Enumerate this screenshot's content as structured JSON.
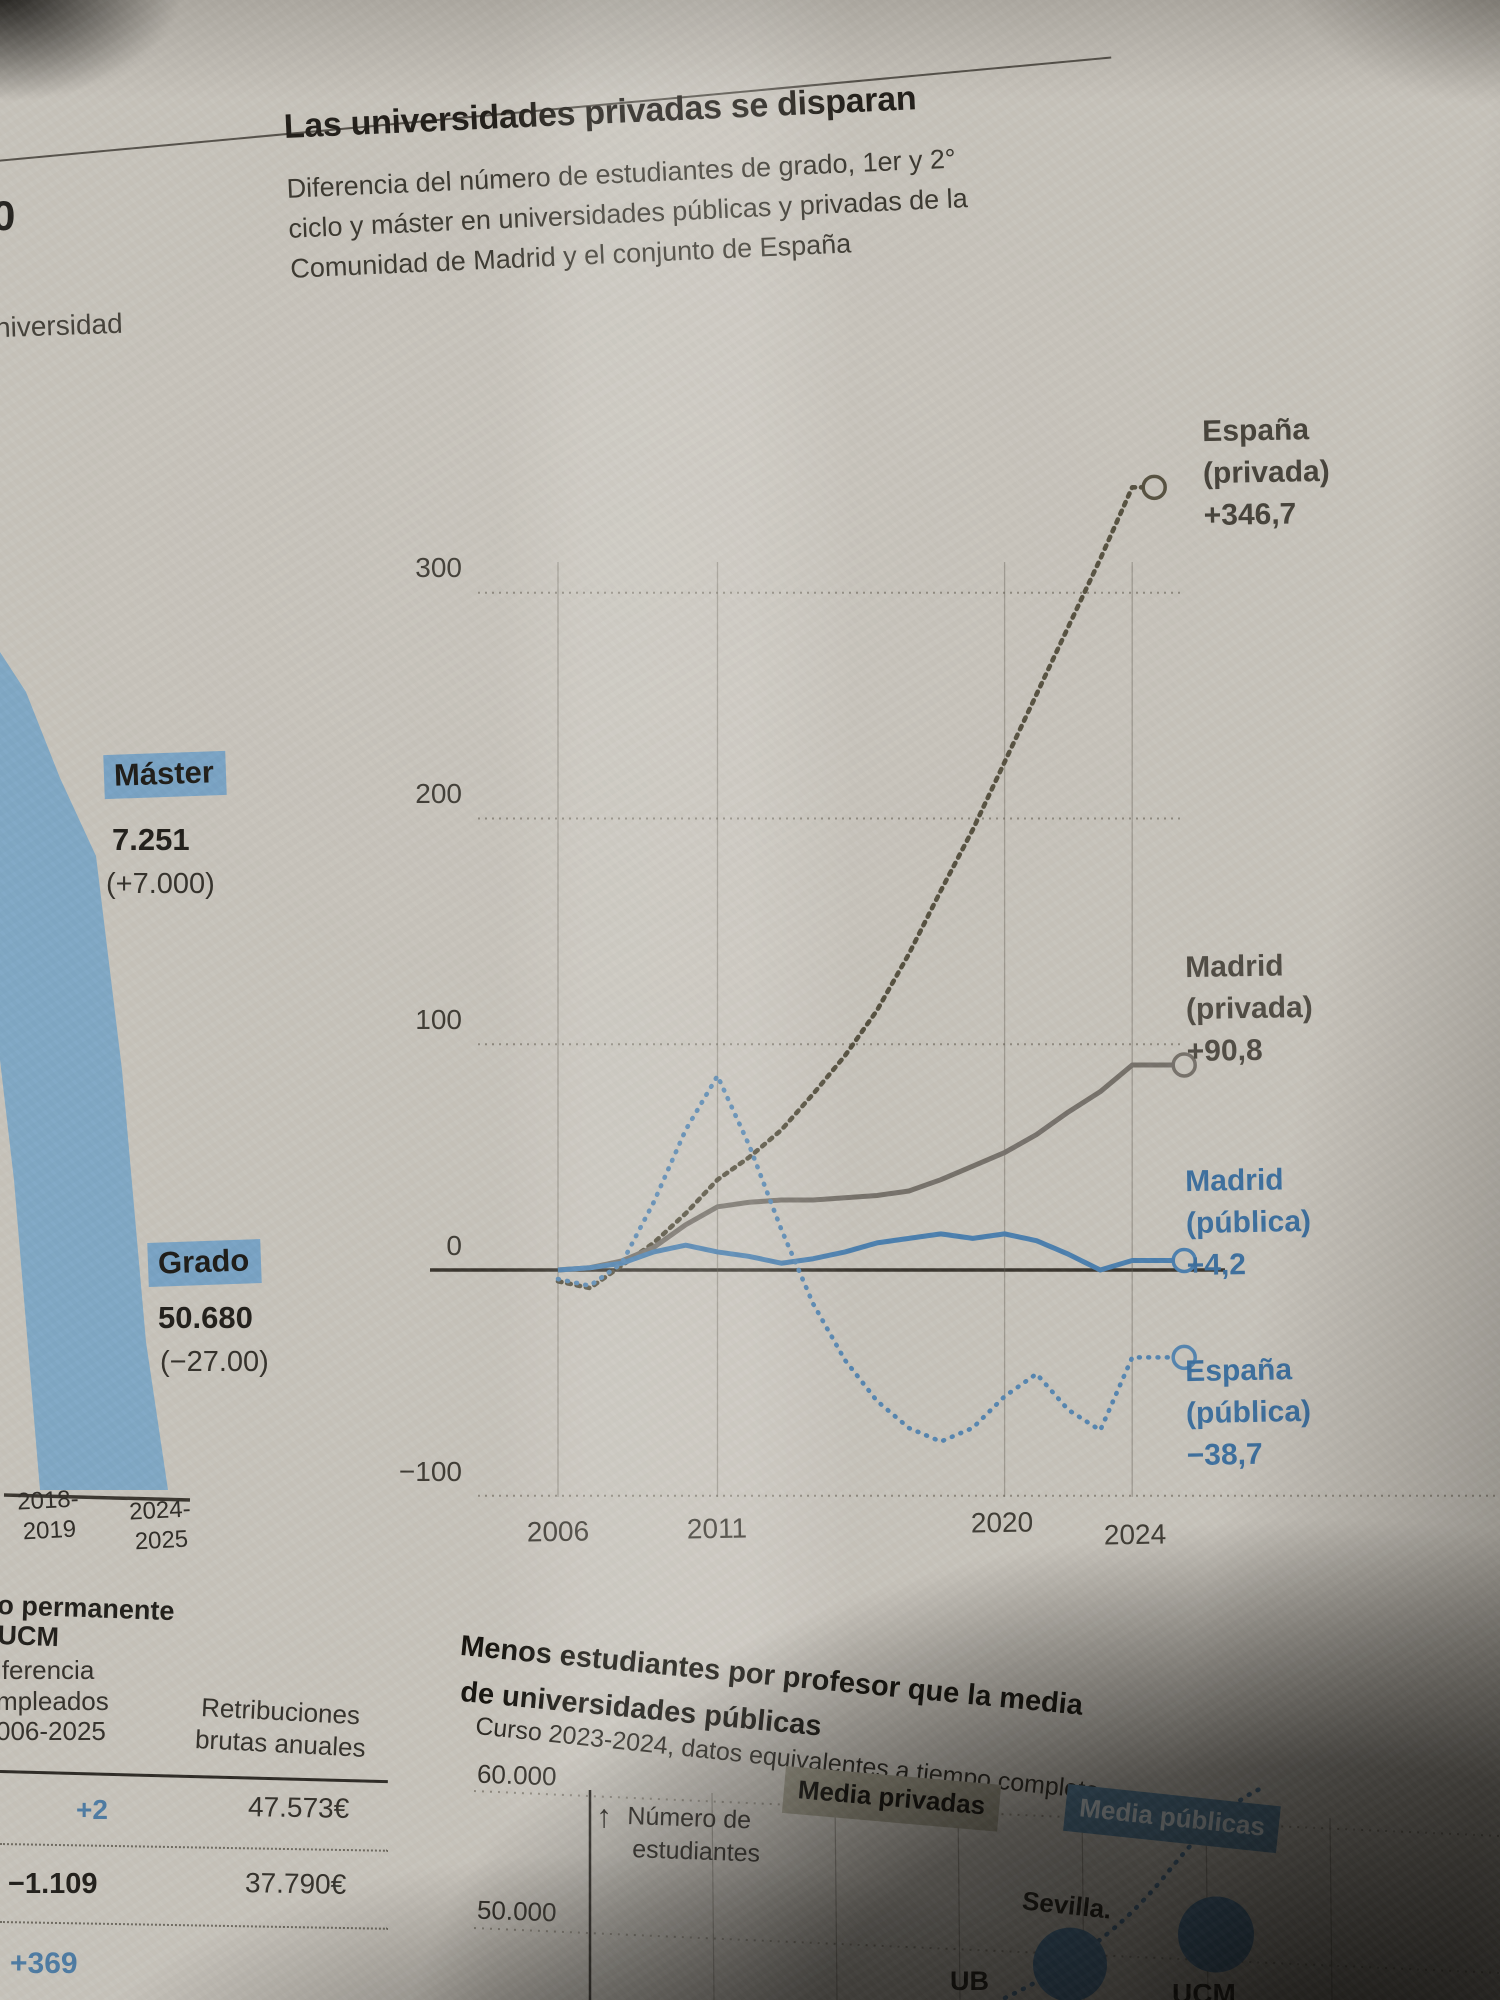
{
  "page": {
    "headline": "Las universidades privadas se disparan",
    "subtitle_lines": [
      "Diferencia del número de estudiantes de grado, 1er y 2°",
      "ciclo y máster en universidades públicas y privadas de la",
      "Comunidad de Madrid y el conjunto de España"
    ],
    "left_margin_fragments": {
      "digit": "0",
      "word": "niversidad"
    }
  },
  "left_bar_chart": {
    "annotations": [
      {
        "label": "Máster",
        "value": "7.251",
        "delta": "(+7.000)"
      },
      {
        "label": "Grado",
        "value": "50.680",
        "delta": "(−27.00)"
      }
    ],
    "x_labels": [
      {
        "line1": "2018-",
        "line2": "2019"
      },
      {
        "line1": "2024-",
        "line2": "2025"
      }
    ]
  },
  "main_chart": {
    "ytick_labels": [
      "300",
      "200",
      "100",
      "0",
      "−100"
    ],
    "xtick_labels": [
      "2006",
      "2011",
      "2020",
      "2024"
    ],
    "legends": [
      {
        "l1": "España",
        "l2": "(privada)",
        "l3": "+346,7",
        "color": "#46423a"
      },
      {
        "l1": "Madrid",
        "l2": "(privada)",
        "l3": "+90,8",
        "color": "#504c44"
      },
      {
        "l1": "Madrid",
        "l2": "(pública)",
        "l3": "+4,2",
        "color": "#3d6f9e"
      },
      {
        "l1": "España",
        "l2": "(pública)",
        "l3": "−38,7",
        "color": "#3d6f9e"
      }
    ]
  },
  "table": {
    "header_bold_line1": "o permanente",
    "header_bold_line2": "UCM",
    "col1_fragments": [
      "iferencia",
      "mpleados",
      "006-2025"
    ],
    "col2_line1": "Retribuciones",
    "col2_line2": "brutas anuales",
    "rows": [
      {
        "delta": "+2",
        "salary": "47.573€"
      },
      {
        "delta": "−1.109",
        "salary": "37.790€"
      },
      {
        "delta": "+369",
        "salary": ""
      }
    ]
  },
  "bottom_chart": {
    "title_line1": "Menos estudiantes por profesor que la media",
    "title_line2": "de universidades públicas",
    "subtitle": "Curso 2023-2024, datos equivalentes a tiempo completo",
    "ytick_labels": [
      "60.000",
      "50.000"
    ],
    "axis_arrow": "↑",
    "axis_note_line1": "Número de",
    "axis_note_line2": "estudiantes",
    "legend_badges": [
      {
        "label": "Media privadas",
        "bg": "#9a9685",
        "fg": "#15130f"
      },
      {
        "label": "Media públicas",
        "bg": "#56809f",
        "fg": "#d3dce1"
      }
    ],
    "point_labels": [
      "Sevilla.",
      "UB",
      "UCM"
    ]
  },
  "chart_data": [
    {
      "type": "line",
      "title": "Las universidades privadas se disparan",
      "subtitle": "Diferencia del número de estudiantes de grado, 1er y 2° ciclo y máster en universidades públicas y privadas de la Comunidad de Madrid y el conjunto de España",
      "x": [
        2006,
        2007,
        2008,
        2009,
        2010,
        2011,
        2012,
        2013,
        2014,
        2015,
        2016,
        2017,
        2018,
        2019,
        2020,
        2021,
        2022,
        2023,
        2024
      ],
      "series": [
        {
          "name": "España (privada)",
          "end_label": "+346,7",
          "style": "dotted",
          "color": "#55503f",
          "values": [
            -5,
            -8,
            2,
            12,
            25,
            40,
            50,
            62,
            78,
            95,
            115,
            140,
            168,
            195,
            225,
            255,
            285,
            315,
            346.7
          ]
        },
        {
          "name": "Madrid (privada)",
          "end_label": "+90,8",
          "style": "solid",
          "color": "#76716a",
          "values": [
            0,
            1,
            4,
            10,
            20,
            28,
            30,
            31,
            31,
            32,
            33,
            35,
            40,
            46,
            52,
            60,
            70,
            79,
            90.8
          ]
        },
        {
          "name": "Madrid (pública)",
          "end_label": "+4,2",
          "style": "solid",
          "color": "#4b7fae",
          "values": [
            0,
            1,
            3,
            8,
            11,
            8,
            6,
            3,
            5,
            8,
            12,
            14,
            16,
            14,
            16,
            13,
            7,
            0,
            4.2
          ]
        },
        {
          "name": "España (pública)",
          "end_label": "−38,7",
          "style": "dotted",
          "color": "#5585b0",
          "values": [
            -4,
            -7,
            3,
            30,
            62,
            86,
            55,
            18,
            -15,
            -40,
            -58,
            -70,
            -76,
            -70,
            -56,
            -46,
            -62,
            -71,
            -38.7
          ]
        }
      ],
      "yticks": [
        300,
        200,
        100,
        0,
        -100
      ],
      "xticks": [
        2006,
        2011,
        2020,
        2024
      ],
      "ylim": [
        -130,
        380
      ],
      "grid": true,
      "legend_position": "right"
    },
    {
      "type": "bar",
      "categories": [
        "2018-2019",
        "2024-2025"
      ],
      "annotations": [
        {
          "label": "Máster",
          "value": "7.251",
          "delta": "(+7.000)"
        },
        {
          "label": "Grado",
          "value": "50.680",
          "delta": "(−27.00)"
        }
      ]
    },
    {
      "type": "scatter",
      "title": "Menos estudiantes por profesor que la media de universidades públicas",
      "subtitle": "Curso 2023-2024, datos equivalentes a tiempo completo",
      "ylabel": "Número de estudiantes",
      "yticks": [
        60000,
        50000
      ],
      "legend": [
        "Media privadas",
        "Media públicas"
      ],
      "points": [
        {
          "label": "Sevilla",
          "students": 47400
        },
        {
          "label": "UB",
          "students": null
        },
        {
          "label": "UCM",
          "students": 49600
        }
      ]
    }
  ]
}
